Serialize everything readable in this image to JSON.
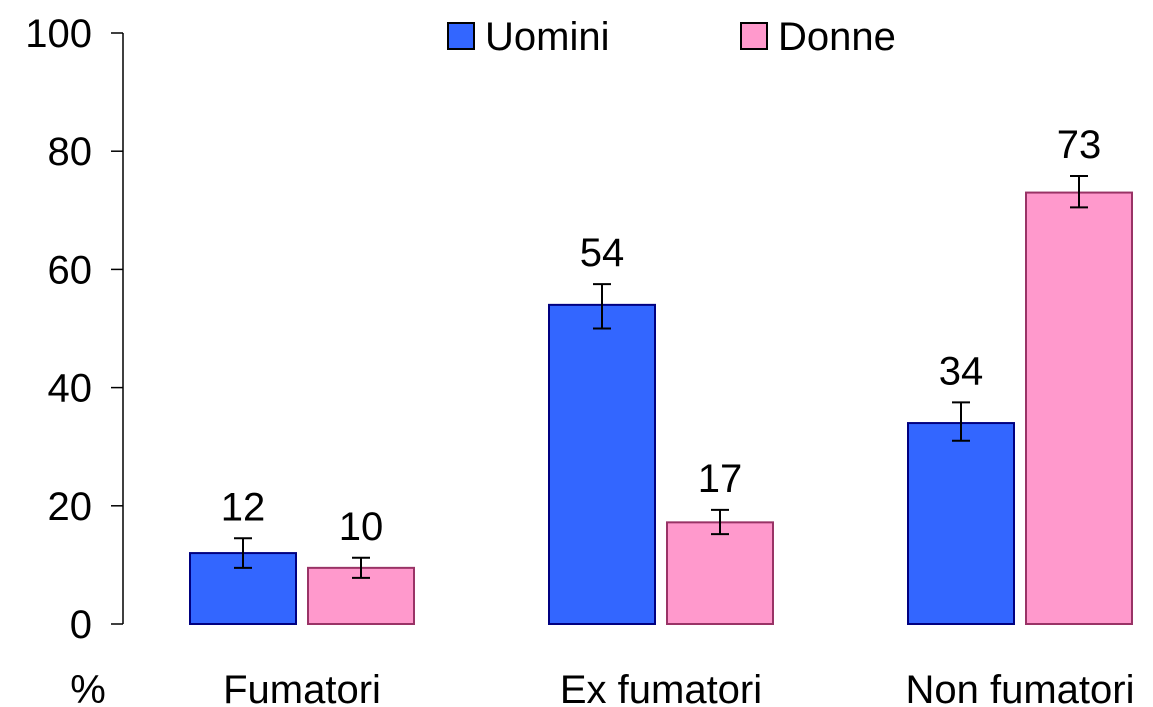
{
  "chart_data": {
    "type": "bar",
    "categories": [
      "Fumatori",
      "Ex fumatori",
      "Non fumatori"
    ],
    "series": [
      {
        "name": "Uomini",
        "color": "#3366ff",
        "values": [
          12,
          54,
          34
        ],
        "labels": [
          "12",
          "54",
          "34"
        ],
        "error": [
          [
            9.5,
            14.5
          ],
          [
            50,
            57.5
          ],
          [
            31,
            37.5
          ]
        ]
      },
      {
        "name": "Donne",
        "color": "#ff99cc",
        "values": [
          9.5,
          17.2,
          73
        ],
        "labels": [
          "10",
          "17",
          "73"
        ],
        "error": [
          [
            7.8,
            11.2
          ],
          [
            15.2,
            19.3
          ],
          [
            70.5,
            75.8
          ]
        ]
      }
    ],
    "ylim": [
      0,
      100
    ],
    "yticks": [
      0,
      20,
      40,
      60,
      80,
      100
    ],
    "ylabel": "%",
    "xlabel": "",
    "title": "",
    "legend_position": "top",
    "grid": false
  }
}
